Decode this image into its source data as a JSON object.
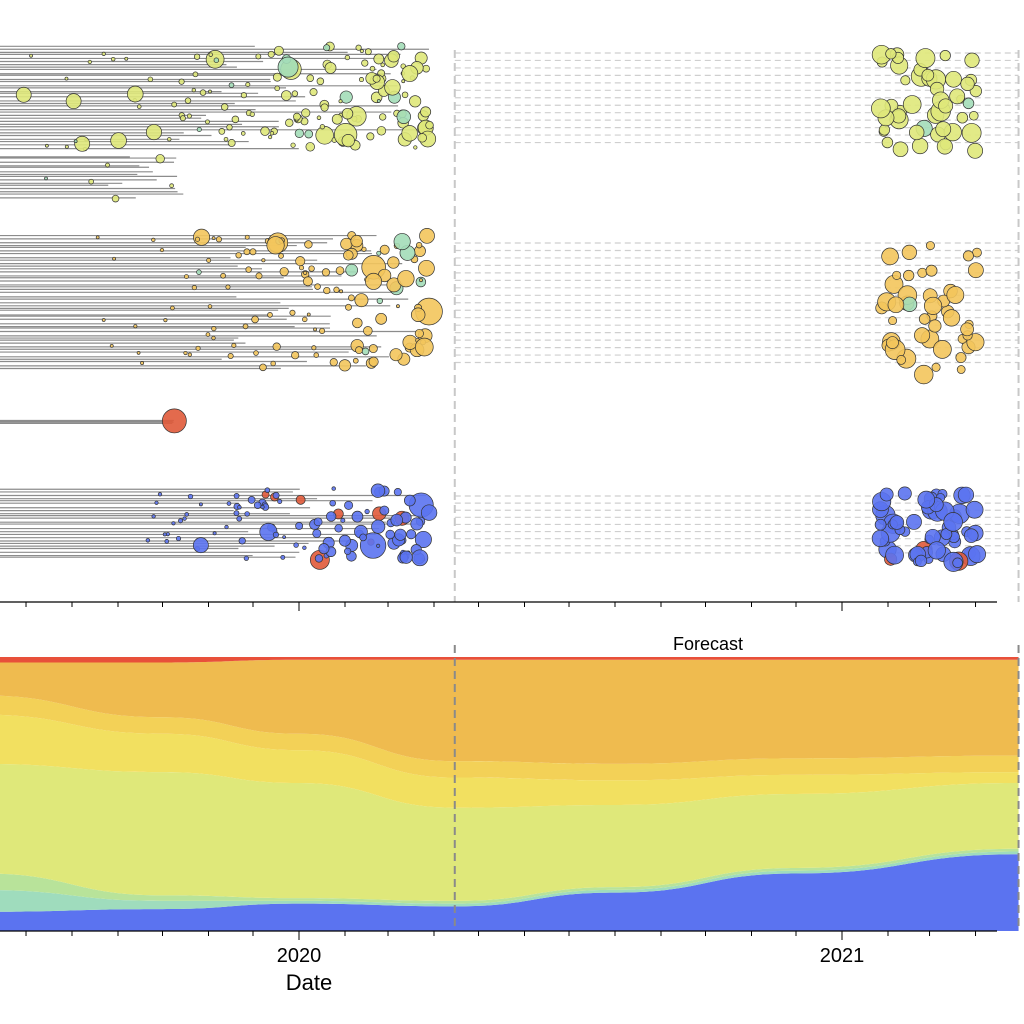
{
  "chart_data": [
    {
      "type": "scatter",
      "subtype": "phylogenetic-tree-timeline",
      "title": "",
      "xlabel": "",
      "ylabel": "",
      "grid": false,
      "forecast_start": "2020-04-15",
      "forecast_end": "2021-04-30",
      "clades": [
        {
          "name": "",
          "color": "#dfe87a",
          "y_range": [
            0.0,
            0.25
          ]
        },
        {
          "name": "",
          "color": "#f3c55c",
          "y_range": [
            0.38,
            0.62
          ]
        },
        {
          "name": "",
          "color": "#5b73f0",
          "y_range": [
            0.82,
            0.96
          ]
        },
        {
          "name": "",
          "color": "#a3ddb8",
          "y_range": [
            0.2,
            0.55
          ]
        },
        {
          "name": "",
          "color": "#e05a3a",
          "y_range": [
            0.7,
            0.82
          ]
        }
      ]
    },
    {
      "type": "area",
      "title": "",
      "xlabel": "Date",
      "ylabel": "",
      "x_ticks": [
        {
          "date": "2020-01-01",
          "label": "2020"
        },
        {
          "date": "2021-01-01",
          "label": "2021"
        }
      ],
      "ylim": [
        0,
        1
      ],
      "annotation": "Forecast",
      "x": [
        "2019-02-01",
        "2019-06-01",
        "2019-10-01",
        "2020-01-01",
        "2020-04-15",
        "2020-08-01",
        "2020-12-01",
        "2021-04-30"
      ],
      "series": [
        {
          "color": "#5b73f0",
          "values": [
            0.08,
            0.07,
            0.08,
            0.1,
            0.09,
            0.14,
            0.21,
            0.28
          ]
        },
        {
          "color": "#9fdcbd",
          "values": [
            0.14,
            0.08,
            0.03,
            0.01,
            0.01,
            0.01,
            0.01,
            0.01
          ]
        },
        {
          "color": "#b8e39a",
          "values": [
            0.16,
            0.06,
            0.02,
            0.01,
            0.01,
            0.01,
            0.01,
            0.01
          ]
        },
        {
          "color": "#dfe87a",
          "values": [
            0.3,
            0.4,
            0.45,
            0.42,
            0.34,
            0.3,
            0.27,
            0.24
          ]
        },
        {
          "color": "#f2e060",
          "values": [
            0.16,
            0.18,
            0.14,
            0.12,
            0.11,
            0.09,
            0.07,
            0.04
          ]
        },
        {
          "color": "#f3d157",
          "values": [
            0.08,
            0.07,
            0.06,
            0.06,
            0.06,
            0.06,
            0.06,
            0.06
          ]
        },
        {
          "color": "#efbb4f",
          "values": [
            0.05,
            0.12,
            0.2,
            0.27,
            0.37,
            0.38,
            0.36,
            0.35
          ]
        },
        {
          "color": "#e8503a",
          "values": [
            0.03,
            0.02,
            0.02,
            0.01,
            0.01,
            0.01,
            0.01,
            0.01
          ]
        }
      ]
    }
  ]
}
